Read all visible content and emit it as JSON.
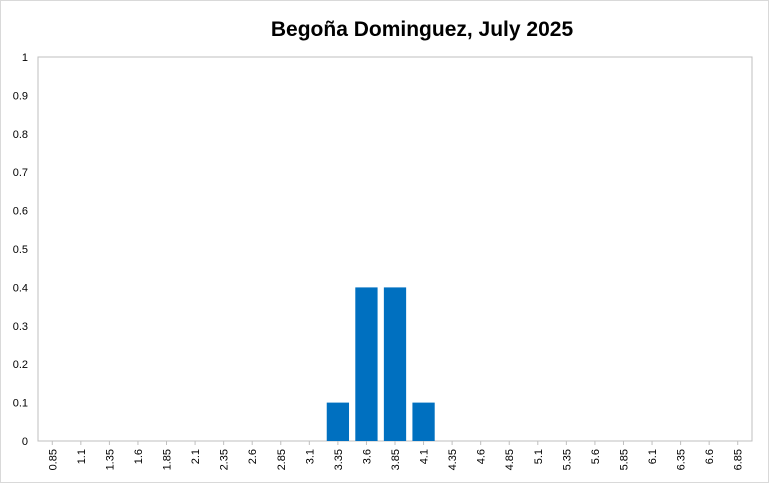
{
  "chart_data": {
    "type": "bar",
    "title": "Begoña Dominguez, July 2025",
    "xlabel": "",
    "ylabel": "",
    "ylim": [
      0,
      1
    ],
    "yticks": [
      "0",
      "0.1",
      "0.2",
      "0.3",
      "0.4",
      "0.5",
      "0.6",
      "0.7",
      "0.8",
      "0.9",
      "1"
    ],
    "grid": false,
    "legend": "none",
    "bar_color": "#0070c0",
    "categories": [
      "0.85",
      "1.1",
      "1.35",
      "1.6",
      "1.85",
      "2.1",
      "2.35",
      "2.6",
      "2.85",
      "3.1",
      "3.35",
      "3.6",
      "3.85",
      "4.1",
      "4.35",
      "4.6",
      "4.85",
      "5.1",
      "5.35",
      "5.6",
      "5.85",
      "6.1",
      "6.35",
      "6.6",
      "6.85"
    ],
    "values": [
      0,
      0,
      0,
      0,
      0,
      0,
      0,
      0,
      0,
      0,
      0.1,
      0.4,
      0.4,
      0.1,
      0,
      0,
      0,
      0,
      0,
      0,
      0,
      0,
      0,
      0,
      0
    ]
  }
}
